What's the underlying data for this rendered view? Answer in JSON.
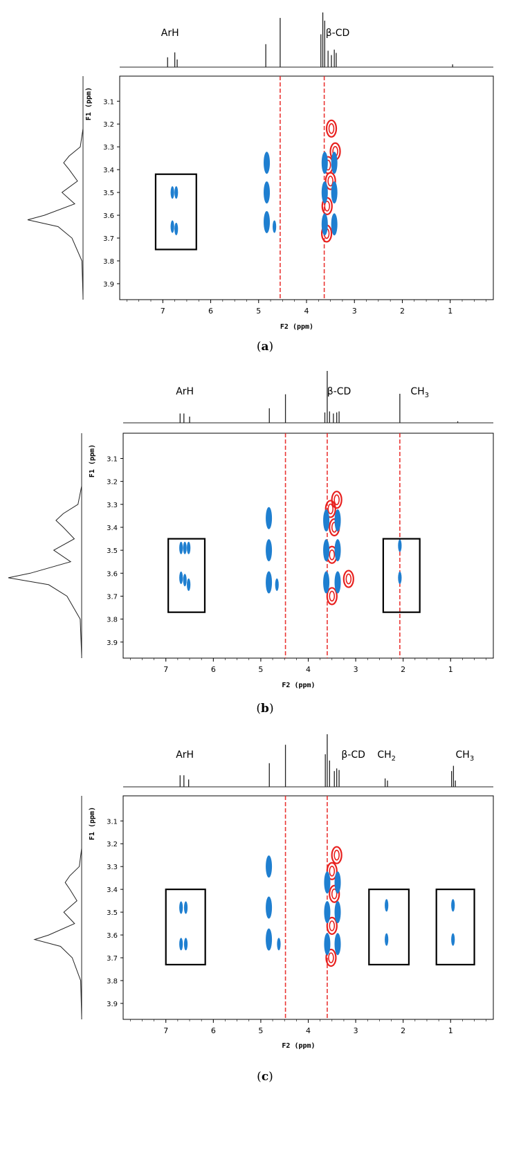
{
  "colors": {
    "positive": "#1f7fd0",
    "negative": "#e8201e",
    "spectrum": "#222222",
    "frame": "#000000"
  },
  "chart_data": [
    {
      "type": "scatter",
      "panel_label": "a",
      "xlabel": "F2 (ppm)",
      "ylabel": "F1 (ppm)",
      "xlim": [
        7.9,
        0.1
      ],
      "ylim": [
        2.99,
        3.97
      ],
      "x_ticks": [
        7,
        6,
        5,
        4,
        3,
        2,
        1
      ],
      "y_ticks": [
        3.1,
        3.2,
        3.3,
        3.4,
        3.5,
        3.6,
        3.7,
        3.8,
        3.9
      ],
      "annotations": [
        {
          "text": "ArH",
          "x": 6.85
        },
        {
          "text": "β-CD",
          "x": 3.35
        }
      ],
      "spectrum_peaks": [
        {
          "ppm": 6.9,
          "height": 0.18
        },
        {
          "ppm": 6.75,
          "height": 0.27
        },
        {
          "ppm": 6.7,
          "height": 0.14
        },
        {
          "ppm": 4.85,
          "height": 0.42
        },
        {
          "ppm": 4.55,
          "height": 0.9
        },
        {
          "ppm": 3.7,
          "height": 0.6
        },
        {
          "ppm": 3.66,
          "height": 1.0
        },
        {
          "ppm": 3.62,
          "height": 0.85
        },
        {
          "ppm": 3.55,
          "height": 0.3
        },
        {
          "ppm": 3.48,
          "height": 0.22
        },
        {
          "ppm": 3.42,
          "height": 0.32
        },
        {
          "ppm": 3.38,
          "height": 0.26
        },
        {
          "ppm": 0.95,
          "height": 0.05
        }
      ],
      "highlight_boxes": [
        {
          "x": [
            7.15,
            6.3
          ],
          "y": [
            3.42,
            3.75
          ]
        }
      ],
      "positive_peaks": [
        {
          "x": 6.8,
          "y": 3.5
        },
        {
          "x": 6.72,
          "y": 3.5
        },
        {
          "x": 6.8,
          "y": 3.65
        },
        {
          "x": 6.72,
          "y": 3.66
        },
        {
          "x": 4.83,
          "y": 3.37
        },
        {
          "x": 4.83,
          "y": 3.5
        },
        {
          "x": 4.83,
          "y": 3.63
        },
        {
          "x": 4.67,
          "y": 3.65
        },
        {
          "x": 3.62,
          "y": 3.37
        },
        {
          "x": 3.62,
          "y": 3.5
        },
        {
          "x": 3.62,
          "y": 3.64
        },
        {
          "x": 3.42,
          "y": 3.37
        },
        {
          "x": 3.42,
          "y": 3.5
        },
        {
          "x": 3.42,
          "y": 3.64
        }
      ],
      "negative_peaks": [
        {
          "x": 3.55,
          "y": 3.38
        },
        {
          "x": 3.5,
          "y": 3.45
        },
        {
          "x": 3.57,
          "y": 3.56
        },
        {
          "x": 3.58,
          "y": 3.68
        },
        {
          "x": 3.48,
          "y": 3.22
        },
        {
          "x": 3.4,
          "y": 3.32
        }
      ]
    },
    {
      "type": "scatter",
      "panel_label": "b",
      "xlabel": "F2 (ppm)",
      "ylabel": "F1 (ppm)",
      "xlim": [
        7.9,
        0.1
      ],
      "ylim": [
        2.99,
        3.97
      ],
      "x_ticks": [
        7,
        6,
        5,
        4,
        3,
        2,
        1
      ],
      "y_ticks": [
        3.1,
        3.2,
        3.3,
        3.4,
        3.5,
        3.6,
        3.7,
        3.8,
        3.9
      ],
      "annotations": [
        {
          "text": "ArH",
          "x": 6.6
        },
        {
          "text": "β-CD",
          "x": 3.35
        },
        {
          "text": "CH",
          "sub": "3",
          "x": 1.65
        }
      ],
      "spectrum_peaks": [
        {
          "ppm": 6.7,
          "height": 0.18
        },
        {
          "ppm": 6.62,
          "height": 0.18
        },
        {
          "ppm": 6.5,
          "height": 0.12
        },
        {
          "ppm": 4.82,
          "height": 0.28
        },
        {
          "ppm": 4.48,
          "height": 0.55
        },
        {
          "ppm": 3.65,
          "height": 0.2
        },
        {
          "ppm": 3.6,
          "height": 1.0
        },
        {
          "ppm": 3.55,
          "height": 0.22
        },
        {
          "ppm": 3.47,
          "height": 0.18
        },
        {
          "ppm": 3.4,
          "height": 0.2
        },
        {
          "ppm": 3.35,
          "height": 0.22
        },
        {
          "ppm": 2.07,
          "height": 0.56
        },
        {
          "ppm": 0.85,
          "height": 0.03
        }
      ],
      "highlight_boxes": [
        {
          "x": [
            6.95,
            6.18
          ],
          "y": [
            3.45,
            3.77
          ]
        },
        {
          "x": [
            2.42,
            1.65
          ],
          "y": [
            3.45,
            3.77
          ]
        }
      ],
      "positive_peaks": [
        {
          "x": 6.68,
          "y": 3.49
        },
        {
          "x": 6.6,
          "y": 3.49
        },
        {
          "x": 6.52,
          "y": 3.49
        },
        {
          "x": 6.68,
          "y": 3.62
        },
        {
          "x": 6.6,
          "y": 3.63
        },
        {
          "x": 6.52,
          "y": 3.65
        },
        {
          "x": 4.83,
          "y": 3.36
        },
        {
          "x": 4.83,
          "y": 3.5
        },
        {
          "x": 4.83,
          "y": 3.64
        },
        {
          "x": 4.66,
          "y": 3.65
        },
        {
          "x": 3.62,
          "y": 3.37
        },
        {
          "x": 3.62,
          "y": 3.5
        },
        {
          "x": 3.62,
          "y": 3.64
        },
        {
          "x": 3.38,
          "y": 3.37
        },
        {
          "x": 3.38,
          "y": 3.5
        },
        {
          "x": 3.38,
          "y": 3.64
        },
        {
          "x": 2.07,
          "y": 3.48
        },
        {
          "x": 2.07,
          "y": 3.62
        }
      ],
      "negative_peaks": [
        {
          "x": 3.53,
          "y": 3.32
        },
        {
          "x": 3.45,
          "y": 3.4
        },
        {
          "x": 3.5,
          "y": 3.52
        },
        {
          "x": 3.5,
          "y": 3.7
        },
        {
          "x": 3.4,
          "y": 3.28
        },
        {
          "x": 3.15,
          "y": 3.625
        }
      ]
    },
    {
      "type": "scatter",
      "panel_label": "c",
      "xlabel": "F2 (ppm)",
      "ylabel": "F1 (ppm)",
      "xlim": [
        7.9,
        0.1
      ],
      "ylim": [
        2.99,
        3.97
      ],
      "x_ticks": [
        7,
        6,
        5,
        4,
        3,
        2,
        1
      ],
      "y_ticks": [
        3.1,
        3.2,
        3.3,
        3.4,
        3.5,
        3.6,
        3.7,
        3.8,
        3.9
      ],
      "annotations": [
        {
          "text": "ArH",
          "x": 6.6
        },
        {
          "text": "β-CD",
          "x": 3.05
        },
        {
          "text": "CH",
          "sub": "2",
          "x": 2.35
        },
        {
          "text": "CH",
          "sub": "3",
          "x": 0.7
        }
      ],
      "spectrum_peaks": [
        {
          "ppm": 6.7,
          "height": 0.22
        },
        {
          "ppm": 6.62,
          "height": 0.22
        },
        {
          "ppm": 6.52,
          "height": 0.14
        },
        {
          "ppm": 4.82,
          "height": 0.45
        },
        {
          "ppm": 4.48,
          "height": 0.8
        },
        {
          "ppm": 3.64,
          "height": 0.62
        },
        {
          "ppm": 3.6,
          "height": 1.0
        },
        {
          "ppm": 3.55,
          "height": 0.5
        },
        {
          "ppm": 3.45,
          "height": 0.3
        },
        {
          "ppm": 3.4,
          "height": 0.35
        },
        {
          "ppm": 3.35,
          "height": 0.32
        },
        {
          "ppm": 2.38,
          "height": 0.16
        },
        {
          "ppm": 2.33,
          "height": 0.12
        },
        {
          "ppm": 0.98,
          "height": 0.3
        },
        {
          "ppm": 0.94,
          "height": 0.4
        },
        {
          "ppm": 0.9,
          "height": 0.12
        }
      ],
      "highlight_boxes": [
        {
          "x": [
            7.0,
            6.17
          ],
          "y": [
            3.4,
            3.73
          ]
        },
        {
          "x": [
            2.72,
            1.88
          ],
          "y": [
            3.4,
            3.73
          ]
        },
        {
          "x": [
            1.3,
            0.5
          ],
          "y": [
            3.4,
            3.73
          ]
        }
      ],
      "positive_peaks": [
        {
          "x": 6.68,
          "y": 3.48
        },
        {
          "x": 6.58,
          "y": 3.48
        },
        {
          "x": 6.68,
          "y": 3.64
        },
        {
          "x": 6.58,
          "y": 3.64
        },
        {
          "x": 4.83,
          "y": 3.3
        },
        {
          "x": 4.83,
          "y": 3.48
        },
        {
          "x": 4.83,
          "y": 3.62
        },
        {
          "x": 4.62,
          "y": 3.64
        },
        {
          "x": 3.6,
          "y": 3.37
        },
        {
          "x": 3.6,
          "y": 3.5
        },
        {
          "x": 3.6,
          "y": 3.64
        },
        {
          "x": 3.38,
          "y": 3.37
        },
        {
          "x": 3.38,
          "y": 3.5
        },
        {
          "x": 3.38,
          "y": 3.64
        },
        {
          "x": 2.35,
          "y": 3.47
        },
        {
          "x": 2.35,
          "y": 3.62
        },
        {
          "x": 0.95,
          "y": 3.47
        },
        {
          "x": 0.95,
          "y": 3.62
        }
      ],
      "negative_peaks": [
        {
          "x": 3.5,
          "y": 3.32
        },
        {
          "x": 3.45,
          "y": 3.42
        },
        {
          "x": 3.5,
          "y": 3.56
        },
        {
          "x": 3.52,
          "y": 3.7
        },
        {
          "x": 3.4,
          "y": 3.25
        }
      ]
    }
  ]
}
